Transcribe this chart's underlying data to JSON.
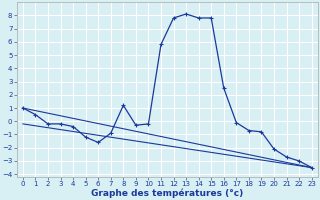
{
  "title": "",
  "xlabel": "Graphe des températures (°c)",
  "bg_color": "#d8eff4",
  "grid_color": "#ffffff",
  "line_color": "#1a3a9a",
  "series": {
    "main": {
      "x": [
        0,
        1,
        2,
        3,
        4,
        5,
        6,
        7,
        8,
        9,
        10,
        11,
        12,
        13,
        14,
        15,
        16,
        17,
        18,
        19,
        20,
        21,
        22,
        23
      ],
      "y": [
        1.0,
        0.5,
        -0.2,
        -0.2,
        -0.4,
        -1.2,
        -1.6,
        -0.9,
        1.2,
        -0.3,
        -0.2,
        5.8,
        7.8,
        8.1,
        7.8,
        7.8,
        2.5,
        -0.1,
        -0.7,
        -0.8,
        -2.1,
        -2.7,
        -3.0,
        -3.5
      ]
    },
    "line2": {
      "x": [
        0,
        23
      ],
      "y": [
        1.0,
        -3.5
      ]
    },
    "line3": {
      "x": [
        0,
        23
      ],
      "y": [
        -0.2,
        -3.5
      ]
    }
  },
  "ylim": [
    -4.2,
    9.0
  ],
  "xlim": [
    -0.5,
    23.5
  ],
  "yticks": [
    -4,
    -3,
    -2,
    -1,
    0,
    1,
    2,
    3,
    4,
    5,
    6,
    7,
    8
  ],
  "xticks": [
    0,
    1,
    2,
    3,
    4,
    5,
    6,
    7,
    8,
    9,
    10,
    11,
    12,
    13,
    14,
    15,
    16,
    17,
    18,
    19,
    20,
    21,
    22,
    23
  ],
  "tick_fontsize": 5.0,
  "xlabel_fontsize": 6.5
}
